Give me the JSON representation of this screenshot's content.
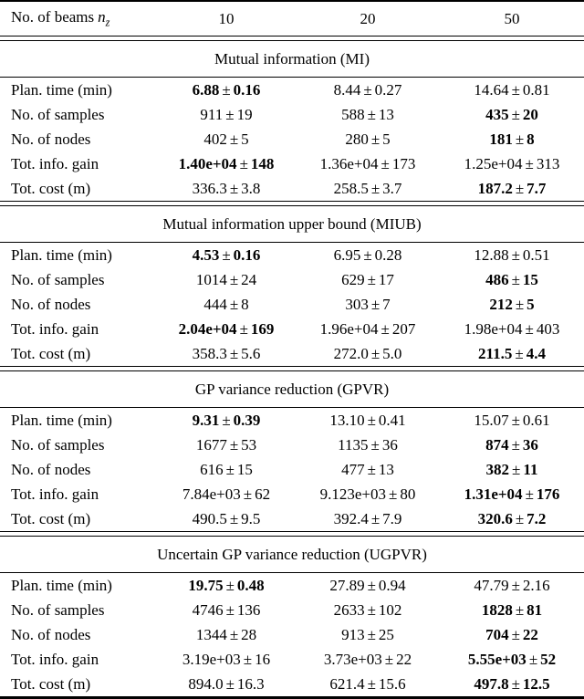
{
  "table": {
    "plus_minus": "±",
    "colors": {
      "text": "#000000",
      "background": "#ffffff",
      "rule": "#000000"
    },
    "header": {
      "label": "No. of beams",
      "symbol": "n",
      "subscript": "z",
      "columns": [
        "10",
        "20",
        "50"
      ]
    },
    "sections": [
      {
        "title": "Mutual information (MI)",
        "rows": [
          {
            "label": "Plan. time (min)",
            "cells": [
              {
                "value": "6.88",
                "err": "0.16",
                "bold": true
              },
              {
                "value": "8.44",
                "err": "0.27",
                "bold": false
              },
              {
                "value": "14.64",
                "err": "0.81",
                "bold": false
              }
            ]
          },
          {
            "label": "No. of samples",
            "cells": [
              {
                "value": "911",
                "err": "19",
                "bold": false
              },
              {
                "value": "588",
                "err": "13",
                "bold": false
              },
              {
                "value": "435",
                "err": "20",
                "bold": true
              }
            ]
          },
          {
            "label": "No. of nodes",
            "cells": [
              {
                "value": "402",
                "err": "5",
                "bold": false
              },
              {
                "value": "280",
                "err": "5",
                "bold": false
              },
              {
                "value": "181",
                "err": "8",
                "bold": true
              }
            ]
          },
          {
            "label": "Tot. info. gain",
            "cells": [
              {
                "value": "1.40e+04",
                "err": "148",
                "bold": true
              },
              {
                "value": "1.36e+04",
                "err": "173",
                "bold": false
              },
              {
                "value": "1.25e+04",
                "err": "313",
                "bold": false
              }
            ]
          },
          {
            "label": "Tot. cost (m)",
            "cells": [
              {
                "value": "336.3",
                "err": "3.8",
                "bold": false
              },
              {
                "value": "258.5",
                "err": "3.7",
                "bold": false
              },
              {
                "value": "187.2",
                "err": "7.7",
                "bold": true
              }
            ]
          }
        ]
      },
      {
        "title": "Mutual information upper bound (MIUB)",
        "rows": [
          {
            "label": "Plan. time (min)",
            "cells": [
              {
                "value": "4.53",
                "err": "0.16",
                "bold": true
              },
              {
                "value": "6.95",
                "err": "0.28",
                "bold": false
              },
              {
                "value": "12.88",
                "err": "0.51",
                "bold": false
              }
            ]
          },
          {
            "label": "No. of samples",
            "cells": [
              {
                "value": "1014",
                "err": "24",
                "bold": false
              },
              {
                "value": "629",
                "err": "17",
                "bold": false
              },
              {
                "value": "486",
                "err": "15",
                "bold": true
              }
            ]
          },
          {
            "label": "No. of nodes",
            "cells": [
              {
                "value": "444",
                "err": "8",
                "bold": false
              },
              {
                "value": "303",
                "err": "7",
                "bold": false
              },
              {
                "value": "212",
                "err": "5",
                "bold": true
              }
            ]
          },
          {
            "label": "Tot. info. gain",
            "cells": [
              {
                "value": "2.04e+04",
                "err": "169",
                "bold": true
              },
              {
                "value": "1.96e+04",
                "err": "207",
                "bold": false
              },
              {
                "value": "1.98e+04",
                "err": "403",
                "bold": false
              }
            ]
          },
          {
            "label": "Tot. cost (m)",
            "cells": [
              {
                "value": "358.3",
                "err": "5.6",
                "bold": false
              },
              {
                "value": "272.0",
                "err": "5.0",
                "bold": false
              },
              {
                "value": "211.5",
                "err": "4.4",
                "bold": true
              }
            ]
          }
        ]
      },
      {
        "title": "GP variance reduction (GPVR)",
        "rows": [
          {
            "label": "Plan. time (min)",
            "cells": [
              {
                "value": "9.31",
                "err": "0.39",
                "bold": true
              },
              {
                "value": "13.10",
                "err": "0.41",
                "bold": false
              },
              {
                "value": "15.07",
                "err": "0.61",
                "bold": false
              }
            ]
          },
          {
            "label": "No. of samples",
            "cells": [
              {
                "value": "1677",
                "err": "53",
                "bold": false
              },
              {
                "value": "1135",
                "err": "36",
                "bold": false
              },
              {
                "value": "874",
                "err": "36",
                "bold": true
              }
            ]
          },
          {
            "label": "No. of nodes",
            "cells": [
              {
                "value": "616",
                "err": "15",
                "bold": false
              },
              {
                "value": "477",
                "err": "13",
                "bold": false
              },
              {
                "value": "382",
                "err": "11",
                "bold": true
              }
            ]
          },
          {
            "label": "Tot. info. gain",
            "cells": [
              {
                "value": "7.84e+03",
                "err": "62",
                "bold": false
              },
              {
                "value": "9.123e+03",
                "err": "80",
                "bold": false
              },
              {
                "value": "1.31e+04",
                "err": "176",
                "bold": true
              }
            ]
          },
          {
            "label": "Tot. cost (m)",
            "cells": [
              {
                "value": "490.5",
                "err": "9.5",
                "bold": false
              },
              {
                "value": "392.4",
                "err": "7.9",
                "bold": false
              },
              {
                "value": "320.6",
                "err": "7.2",
                "bold": true
              }
            ]
          }
        ]
      },
      {
        "title": "Uncertain GP variance reduction (UGPVR)",
        "rows": [
          {
            "label": "Plan. time (min)",
            "cells": [
              {
                "value": "19.75",
                "err": "0.48",
                "bold": true
              },
              {
                "value": "27.89",
                "err": "0.94",
                "bold": false
              },
              {
                "value": "47.79",
                "err": "2.16",
                "bold": false
              }
            ]
          },
          {
            "label": "No. of samples",
            "cells": [
              {
                "value": "4746",
                "err": "136",
                "bold": false
              },
              {
                "value": "2633",
                "err": "102",
                "bold": false
              },
              {
                "value": "1828",
                "err": "81",
                "bold": true
              }
            ]
          },
          {
            "label": "No. of nodes",
            "cells": [
              {
                "value": "1344",
                "err": "28",
                "bold": false
              },
              {
                "value": "913",
                "err": "25",
                "bold": false
              },
              {
                "value": "704",
                "err": "22",
                "bold": true
              }
            ]
          },
          {
            "label": "Tot. info. gain",
            "cells": [
              {
                "value": "3.19e+03",
                "err": "16",
                "bold": false
              },
              {
                "value": "3.73e+03",
                "err": "22",
                "bold": false
              },
              {
                "value": "5.55e+03",
                "err": "52",
                "bold": true
              }
            ]
          },
          {
            "label": "Tot. cost (m)",
            "cells": [
              {
                "value": "894.0",
                "err": "16.3",
                "bold": false
              },
              {
                "value": "621.4",
                "err": "15.6",
                "bold": false
              },
              {
                "value": "497.8",
                "err": "12.5",
                "bold": true
              }
            ]
          }
        ]
      }
    ]
  }
}
